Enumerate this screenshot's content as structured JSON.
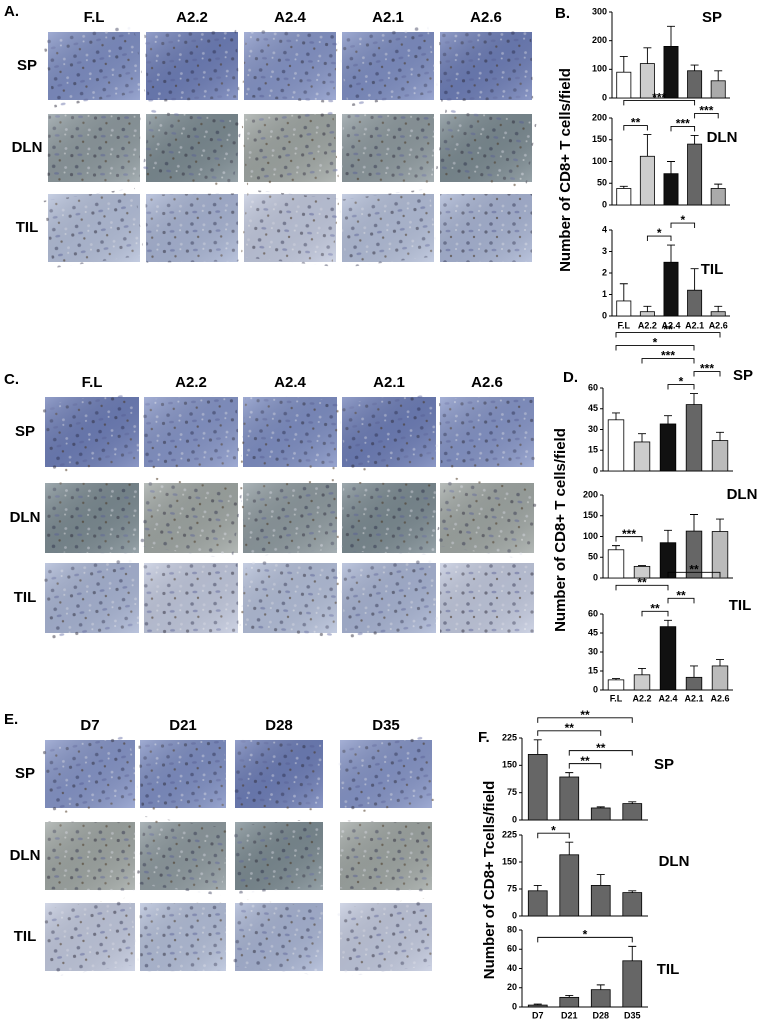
{
  "image_panels": [
    {
      "label": "A.",
      "columns": [
        "F.L",
        "A2.2",
        "A2.4",
        "A2.1",
        "A2.6"
      ],
      "rows": [
        "SP",
        "DLN",
        "TIL"
      ]
    },
    {
      "label": "C.",
      "columns": [
        "F.L",
        "A2.2",
        "A2.4",
        "A2.1",
        "A2.6"
      ],
      "rows": [
        "SP",
        "DLN",
        "TIL"
      ]
    },
    {
      "label": "E.",
      "columns": [
        "D7",
        "D21",
        "D28",
        "D35"
      ],
      "rows": [
        "SP",
        "DLN",
        "TIL"
      ]
    }
  ],
  "chart_panels": [
    {
      "label": "B.",
      "y_label": "Number of CD8+ T cells/field"
    },
    {
      "label": "D.",
      "y_label": "Number of CD8+ T cells/field"
    },
    {
      "label": "F.",
      "y_label": "Number of CD8+ Tcells/field"
    }
  ],
  "chart_data": [
    {
      "type": "bar",
      "title": "SP",
      "categories": [
        null,
        null,
        null,
        null,
        null
      ],
      "values": [
        90,
        120,
        180,
        95,
        60
      ],
      "errors": [
        55,
        55,
        70,
        20,
        35
      ],
      "colors": [
        "#ffffff",
        "#cccccc",
        "#111111",
        "#666666",
        "#aaaaaa"
      ],
      "ylim": [
        0,
        300
      ],
      "yticks": [
        0,
        100,
        200,
        300
      ],
      "significance": []
    },
    {
      "type": "bar",
      "title": "DLN",
      "categories": [
        null,
        null,
        null,
        null,
        null
      ],
      "values": [
        38,
        112,
        72,
        140,
        38
      ],
      "errors": [
        5,
        50,
        28,
        20,
        10
      ],
      "colors": [
        "#ffffff",
        "#cccccc",
        "#111111",
        "#666666",
        "#aaaaaa"
      ],
      "ylim": [
        0,
        200
      ],
      "yticks": [
        0,
        50,
        100,
        150,
        200
      ],
      "significance": [
        {
          "between": [
            "F.L",
            "A2.2"
          ],
          "label": "**"
        },
        {
          "between": [
            "A2.4",
            "A2.1"
          ],
          "label": "***"
        },
        {
          "between": [
            "A2.1",
            "A2.6"
          ],
          "label": "***"
        },
        {
          "between": [
            "F.L",
            "A2.1"
          ],
          "label": "***"
        }
      ]
    },
    {
      "type": "bar",
      "title": "TIL",
      "categories": [
        "F.L",
        "A2.2",
        "A2.4",
        "A2.1",
        "A2.6"
      ],
      "values": [
        0.7,
        0.2,
        2.5,
        1.2,
        0.2
      ],
      "errors": [
        0.8,
        0.25,
        0.8,
        1.0,
        0.25
      ],
      "colors": [
        "#ffffff",
        "#cccccc",
        "#111111",
        "#666666",
        "#aaaaaa"
      ],
      "ylim": [
        0,
        4
      ],
      "yticks": [
        0,
        1,
        2,
        3,
        4
      ],
      "significance": [
        {
          "between": [
            "A2.2",
            "A2.4"
          ],
          "label": "*"
        },
        {
          "between": [
            "A2.4",
            "A2.1"
          ],
          "label": "*"
        }
      ]
    },
    {
      "type": "bar",
      "title": "SP",
      "categories": [
        null,
        null,
        null,
        null,
        null
      ],
      "values": [
        37,
        21,
        34,
        48,
        22
      ],
      "errors": [
        5,
        6,
        6,
        8,
        6
      ],
      "colors": [
        "#ffffff",
        "#cccccc",
        "#111111",
        "#666666",
        "#bbbbbb"
      ],
      "ylim": [
        0,
        60
      ],
      "yticks": [
        0,
        15,
        30,
        45,
        60
      ],
      "significance": [
        {
          "between": [
            "A2.4",
            "A2.1"
          ],
          "label": "*"
        },
        {
          "between": [
            "A2.1",
            "A2.6"
          ],
          "label": "***"
        },
        {
          "between": [
            "A2.2",
            "A2.1"
          ],
          "label": "***"
        },
        {
          "between": [
            "F.L",
            "A2.1"
          ],
          "label": "*"
        },
        {
          "between": [
            "F.L",
            "A2.6"
          ],
          "label": "**"
        }
      ]
    },
    {
      "type": "bar",
      "title": "DLN",
      "categories": [
        null,
        null,
        null,
        null,
        null
      ],
      "values": [
        68,
        28,
        85,
        113,
        112
      ],
      "errors": [
        10,
        2,
        30,
        40,
        30
      ],
      "colors": [
        "#ffffff",
        "#cccccc",
        "#111111",
        "#666666",
        "#bbbbbb"
      ],
      "ylim": [
        0,
        200
      ],
      "yticks": [
        0,
        50,
        100,
        150,
        200
      ],
      "significance": [
        {
          "between": [
            "F.L",
            "A2.2"
          ],
          "label": "***"
        }
      ]
    },
    {
      "type": "bar",
      "title": "TIL",
      "categories": [
        "F.L",
        "A2.2",
        "A2.4",
        "A2.1",
        "A2.6"
      ],
      "values": [
        8,
        12,
        50,
        10,
        19
      ],
      "errors": [
        1,
        5,
        5,
        9,
        5
      ],
      "colors": [
        "#ffffff",
        "#cccccc",
        "#111111",
        "#666666",
        "#bbbbbb"
      ],
      "ylim": [
        0,
        60
      ],
      "yticks": [
        0,
        15,
        30,
        45,
        60
      ],
      "significance": [
        {
          "between": [
            "A2.2",
            "A2.4"
          ],
          "label": "**"
        },
        {
          "between": [
            "A2.4",
            "A2.1"
          ],
          "label": "**"
        },
        {
          "between": [
            "F.L",
            "A2.4"
          ],
          "label": "**"
        },
        {
          "between": [
            "A2.4",
            "A2.6"
          ],
          "label": "**"
        }
      ]
    },
    {
      "type": "bar",
      "title": "SP",
      "categories": [
        null,
        null,
        null,
        null
      ],
      "values": [
        180,
        118,
        33,
        45
      ],
      "errors": [
        40,
        12,
        3,
        5
      ],
      "colors": [
        "#666666",
        "#666666",
        "#666666",
        "#666666"
      ],
      "ylim": [
        0,
        225
      ],
      "yticks": [
        0,
        75,
        150,
        225
      ],
      "significance": [
        {
          "between": [
            "D21",
            "D28"
          ],
          "label": "**"
        },
        {
          "between": [
            "D21",
            "D35"
          ],
          "label": "**"
        },
        {
          "between": [
            "D7",
            "D28"
          ],
          "label": "**"
        },
        {
          "between": [
            "D7",
            "D35"
          ],
          "label": "**"
        }
      ]
    },
    {
      "type": "bar",
      "title": "DLN",
      "categories": [
        null,
        null,
        null,
        null
      ],
      "values": [
        70,
        170,
        85,
        65
      ],
      "errors": [
        15,
        35,
        30,
        5
      ],
      "colors": [
        "#666666",
        "#666666",
        "#666666",
        "#666666"
      ],
      "ylim": [
        0,
        225
      ],
      "yticks": [
        0,
        75,
        150,
        225
      ],
      "significance": [
        {
          "between": [
            "D7",
            "D21"
          ],
          "label": "*"
        }
      ]
    },
    {
      "type": "bar",
      "title": "TIL",
      "categories": [
        "D7",
        "D21",
        "D28",
        "D35"
      ],
      "values": [
        2,
        10,
        18,
        48
      ],
      "errors": [
        1,
        2,
        5,
        15
      ],
      "colors": [
        "#666666",
        "#666666",
        "#666666",
        "#666666"
      ],
      "ylim": [
        0,
        80
      ],
      "yticks": [
        0,
        20,
        40,
        60,
        80
      ],
      "significance": [
        {
          "between": [
            "D7",
            "D35"
          ],
          "label": "*"
        }
      ]
    }
  ]
}
